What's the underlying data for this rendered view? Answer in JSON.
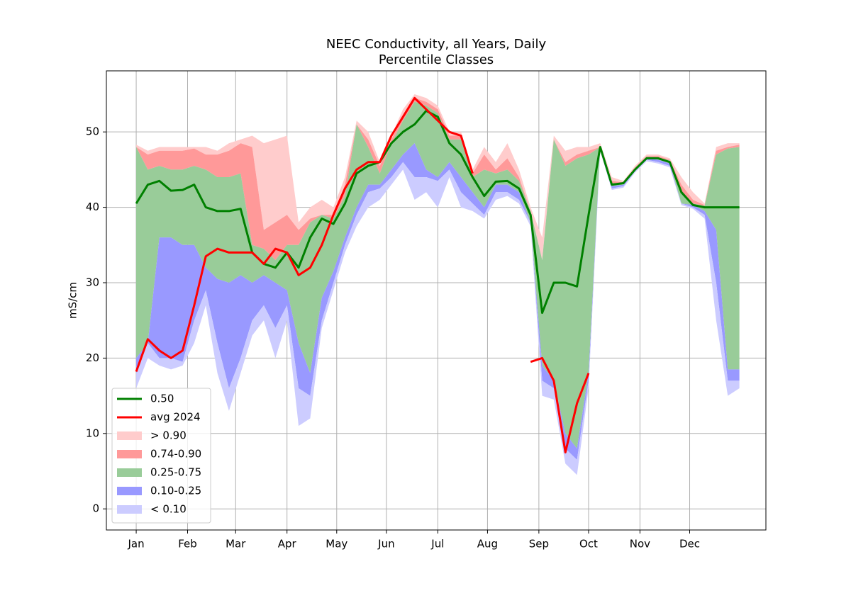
{
  "chart_data": {
    "type": "percentile_bands",
    "title": "NEEC Conductivity, all Years, Daily",
    "subtitle": "Percentile Classes",
    "y_label": "mS/cm",
    "xlim": [
      -17,
      381
    ],
    "ylim": [
      -2.8,
      58.1
    ],
    "xticks": [
      {
        "value": 1,
        "label": "Jan"
      },
      {
        "value": 32,
        "label": "Feb"
      },
      {
        "value": 61,
        "label": "Mar"
      },
      {
        "value": 92,
        "label": "Apr"
      },
      {
        "value": 122,
        "label": "May"
      },
      {
        "value": 152,
        "label": "Jun"
      },
      {
        "value": 183,
        "label": "Jul"
      },
      {
        "value": 213,
        "label": "Aug"
      },
      {
        "value": 244,
        "label": "Sep"
      },
      {
        "value": 274,
        "label": "Oct"
      },
      {
        "value": 305,
        "label": "Nov"
      },
      {
        "value": 335,
        "label": "Dec"
      }
    ],
    "yticks": [
      0,
      10,
      20,
      30,
      40,
      50
    ],
    "grid": true,
    "legend": "lower left",
    "x": [
      1,
      8,
      15,
      22,
      29,
      36,
      43,
      50,
      57,
      64,
      71,
      78,
      85,
      92,
      99,
      106,
      113,
      120,
      127,
      134,
      141,
      148,
      155,
      162,
      169,
      176,
      183,
      190,
      197,
      204,
      211,
      218,
      225,
      232,
      239,
      246,
      253,
      260,
      267,
      274,
      281,
      288,
      295,
      302,
      309,
      316,
      323,
      330,
      337,
      344,
      351,
      358,
      365
    ],
    "min": [
      16,
      20,
      19,
      18.5,
      19,
      22,
      27,
      18,
      13,
      18,
      23,
      25,
      20,
      25,
      11,
      12,
      24,
      29,
      34,
      37.5,
      40,
      41,
      43,
      45,
      41,
      42,
      40,
      44,
      40,
      39.5,
      38.5,
      41,
      41.5,
      40.5,
      37.5,
      15,
      14.5,
      6,
      4.5,
      16,
      47.5,
      42.3,
      42.6,
      44.6,
      46.1,
      45.8,
      45.3,
      40.3,
      39.8,
      38.5,
      25,
      15,
      16
    ],
    "series": [
      {
        "name": "0.50",
        "kind": "line",
        "color": "#008000",
        "values": [
          40.5,
          43,
          43.5,
          42.2,
          42.3,
          43,
          40,
          39.5,
          39.5,
          39.8,
          34,
          32.5,
          32,
          34,
          32,
          36,
          38.5,
          37.8,
          40.5,
          44.5,
          45.5,
          46,
          48.5,
          50,
          51,
          52.8,
          52,
          48.5,
          47,
          44,
          41.5,
          43.4,
          43.5,
          42.5,
          39,
          26,
          30,
          30,
          29.5,
          39,
          48,
          43,
          43.2,
          45,
          46.5,
          46.5,
          46,
          42,
          40.3,
          40,
          40,
          40,
          40
        ]
      },
      {
        "name": "avg 2024",
        "kind": "line",
        "color": "#ff0000",
        "values": [
          18.2,
          22.5,
          21,
          20,
          21,
          27,
          33.5,
          34.5,
          34,
          34,
          34,
          32.5,
          34.5,
          34,
          31,
          32,
          35,
          39,
          42.5,
          45,
          46,
          46,
          49.5,
          52,
          54.5,
          53,
          51.5,
          50,
          49.5,
          44.5,
          null,
          null,
          null,
          null,
          19.5,
          20,
          17,
          7.5,
          14,
          18,
          null,
          null,
          null,
          null,
          null,
          null,
          null,
          null,
          null,
          null,
          null,
          null,
          null
        ]
      },
      {
        "name": "> 0.90",
        "kind": "band",
        "color": "#ffcccc",
        "values": [
          48.3,
          47.5,
          48,
          48,
          48,
          48,
          48,
          47.5,
          48.5,
          49,
          49.5,
          48.5,
          49,
          49.5,
          38,
          40,
          41,
          40,
          44,
          51.5,
          50,
          46,
          49.5,
          53,
          55,
          54.5,
          53.5,
          50,
          50,
          45,
          48,
          46,
          48.5,
          45,
          40,
          36,
          49.5,
          47.5,
          48,
          48,
          48.5,
          44,
          43.5,
          45.5,
          47,
          47,
          46.5,
          44,
          42,
          40.5,
          48,
          48.5,
          48.5
        ]
      },
      {
        "name": "0.74-0.90",
        "kind": "band",
        "color": "#ff9999",
        "values": [
          48,
          47,
          47.5,
          47.5,
          47.5,
          47.8,
          47,
          47,
          47.5,
          48.5,
          48,
          37,
          38,
          39,
          37,
          38.5,
          39,
          39,
          43,
          51,
          49,
          45.5,
          49,
          52,
          54.5,
          54,
          53,
          49.5,
          49.5,
          44.5,
          47,
          45,
          46.5,
          44,
          39.5,
          33,
          49,
          46,
          47,
          47.5,
          48,
          43.5,
          43.3,
          45.3,
          46.8,
          46.8,
          46.3,
          43,
          41,
          40.3,
          47.5,
          48,
          48.3
        ]
      },
      {
        "name": "0.25-0.75",
        "kind": "band",
        "color": "#99cc99",
        "values": [
          48,
          45,
          45.5,
          45,
          45,
          45.5,
          45,
          44,
          44,
          44.5,
          35,
          34.5,
          33,
          35,
          35,
          38,
          39,
          38.5,
          41.5,
          51,
          48,
          44.5,
          48.5,
          51.5,
          54,
          53.5,
          52.5,
          49,
          49,
          44,
          45,
          44.5,
          45,
          43.5,
          39.5,
          33,
          49,
          45.5,
          46.5,
          47,
          48,
          43.2,
          43.2,
          45.2,
          46.7,
          46.6,
          46.2,
          42,
          40.5,
          40.2,
          47,
          47.8,
          48
        ]
      },
      {
        "name": "0.10-0.25",
        "kind": "band",
        "color": "#9999ff",
        "values": [
          20,
          22,
          36,
          36,
          35,
          35,
          32,
          30.5,
          30,
          31,
          30,
          31,
          30,
          29,
          22,
          18,
          28,
          31.5,
          36,
          40,
          43,
          43,
          45,
          47,
          48.5,
          45,
          44,
          46,
          44,
          42,
          40,
          43,
          43,
          42,
          38,
          19,
          17,
          10,
          8,
          18,
          48,
          42.8,
          43,
          45,
          46.5,
          46.3,
          45.8,
          40.5,
          40.3,
          39.5,
          37,
          18.5,
          18.5
        ]
      },
      {
        "name": "< 0.10",
        "kind": "band",
        "color": "#ccccff",
        "values": [
          18,
          22,
          20,
          20,
          19.5,
          25,
          29,
          22,
          16,
          20,
          25,
          27,
          24,
          27,
          16,
          15,
          25,
          30,
          35,
          39,
          42,
          42.5,
          44,
          46,
          44,
          44,
          43.5,
          45,
          42,
          40.5,
          39,
          42,
          42,
          41,
          38,
          17,
          16,
          8,
          6.5,
          17,
          47.8,
          42.5,
          42.8,
          44.8,
          46.3,
          46,
          45.5,
          40.5,
          40,
          39,
          30,
          17,
          17
        ]
      }
    ]
  }
}
